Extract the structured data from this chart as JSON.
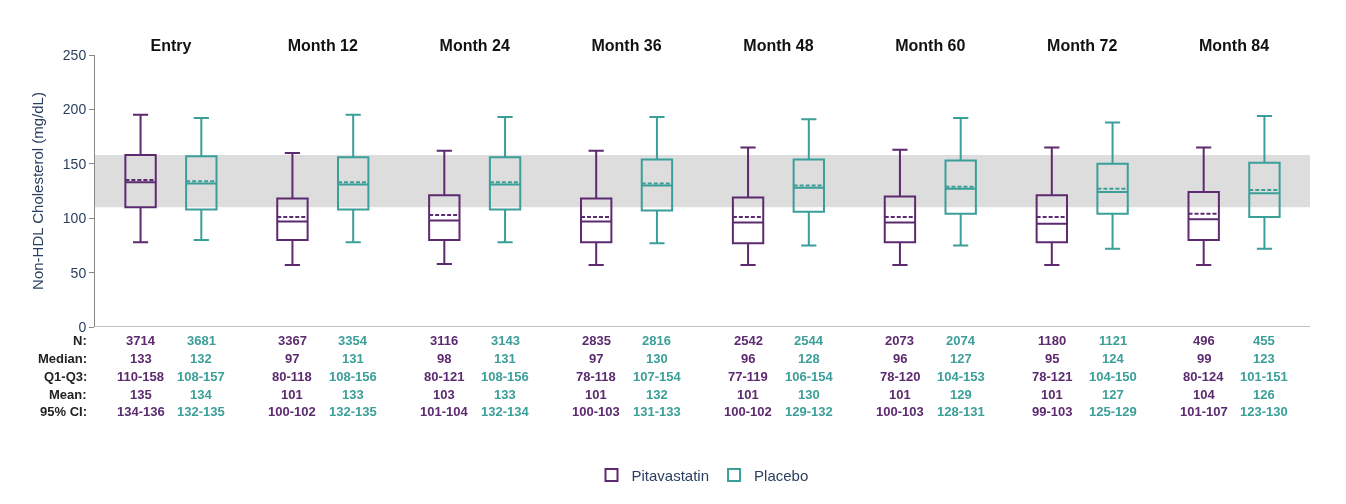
{
  "chart_data": {
    "type": "box",
    "ylabel": "Non-HDL Cholesterol (mg/dL)",
    "categories": [
      "Entry",
      "Month 12",
      "Month 24",
      "Month 36",
      "Month 48",
      "Month 60",
      "Month 72",
      "Month 84"
    ],
    "ylim": [
      0,
      250
    ],
    "yticks": [
      0,
      50,
      100,
      150,
      200,
      250
    ],
    "bands": [
      {
        "axis": "y",
        "from": 110,
        "to": 158,
        "color": "#dddddd"
      }
    ],
    "legend": "bottom",
    "series": [
      {
        "name": "Pitavastatin",
        "color": "#5c2a6f",
        "boxes": [
          {
            "low": 78,
            "q1": 110,
            "median": 133,
            "q3": 158,
            "high": 195,
            "mean": 135
          },
          {
            "low": 57,
            "q1": 80,
            "median": 97,
            "q3": 118,
            "high": 160,
            "mean": 101
          },
          {
            "low": 58,
            "q1": 80,
            "median": 98,
            "q3": 121,
            "high": 162,
            "mean": 103
          },
          {
            "low": 57,
            "q1": 78,
            "median": 97,
            "q3": 118,
            "high": 162,
            "mean": 101
          },
          {
            "low": 57,
            "q1": 77,
            "median": 96,
            "q3": 119,
            "high": 165,
            "mean": 101
          },
          {
            "low": 57,
            "q1": 78,
            "median": 96,
            "q3": 120,
            "high": 163,
            "mean": 101
          },
          {
            "low": 57,
            "q1": 78,
            "median": 95,
            "q3": 121,
            "high": 165,
            "mean": 101
          },
          {
            "low": 57,
            "q1": 80,
            "median": 99,
            "q3": 124,
            "high": 165,
            "mean": 104
          }
        ]
      },
      {
        "name": "Placebo",
        "color": "#3a9f98",
        "boxes": [
          {
            "low": 80,
            "q1": 108,
            "median": 132,
            "q3": 157,
            "high": 192,
            "mean": 134
          },
          {
            "low": 78,
            "q1": 108,
            "median": 131,
            "q3": 156,
            "high": 195,
            "mean": 133
          },
          {
            "low": 78,
            "q1": 108,
            "median": 131,
            "q3": 156,
            "high": 193,
            "mean": 133
          },
          {
            "low": 77,
            "q1": 107,
            "median": 130,
            "q3": 154,
            "high": 193,
            "mean": 132
          },
          {
            "low": 75,
            "q1": 106,
            "median": 128,
            "q3": 154,
            "high": 191,
            "mean": 130
          },
          {
            "low": 75,
            "q1": 104,
            "median": 127,
            "q3": 153,
            "high": 192,
            "mean": 129
          },
          {
            "low": 72,
            "q1": 104,
            "median": 124,
            "q3": 150,
            "high": 188,
            "mean": 127
          },
          {
            "low": 72,
            "q1": 101,
            "median": 123,
            "q3": 151,
            "high": 194,
            "mean": 126
          }
        ]
      }
    ],
    "annotations": [
      "N:",
      "Median:",
      "Q1-Q3:",
      "Mean:",
      "95% CI:",
      "3714",
      "133",
      "110-158",
      "135",
      "134-136",
      "3681",
      "132",
      "108-157",
      "134",
      "132-135",
      "3367",
      "97",
      "80-118",
      "101",
      "100-102",
      "3354",
      "131",
      "108-156",
      "133",
      "132-135",
      "3116",
      "98",
      "80-121",
      "103",
      "101-104",
      "3143",
      "131",
      "108-156",
      "133",
      "132-134",
      "2835",
      "97",
      "78-118",
      "101",
      "100-103",
      "2816",
      "130",
      "107-154",
      "132",
      "131-133",
      "2542",
      "96",
      "77-119",
      "101",
      "100-102",
      "2544",
      "128",
      "106-154",
      "130",
      "129-132",
      "2073",
      "96",
      "78-120",
      "101",
      "100-103",
      "2074",
      "127",
      "104-153",
      "129",
      "128-131",
      "1180",
      "95",
      "78-121",
      "101",
      "99-103",
      "1121",
      "124",
      "104-150",
      "127",
      "125-129",
      "496",
      "99",
      "80-124",
      "104",
      "101-107",
      "455",
      "123",
      "101-151",
      "126",
      "123-130"
    ]
  }
}
